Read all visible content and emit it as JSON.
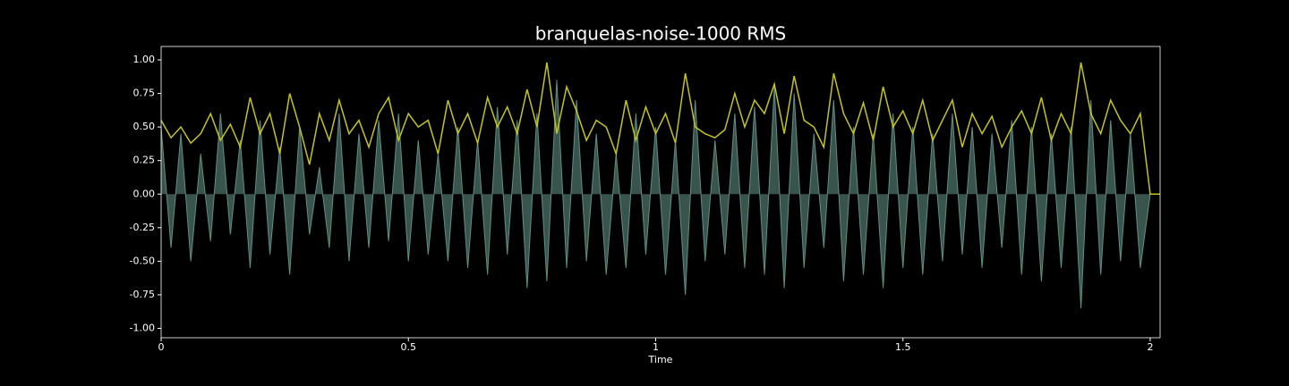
{
  "chart_data": {
    "type": "line",
    "title": "branquelas-noise-1000 RMS",
    "xlabel": "Time",
    "xlim": [
      0,
      2.02
    ],
    "xticks": [
      0,
      0.5,
      1,
      1.5,
      2
    ],
    "ylim": [
      -1.07,
      1.1
    ],
    "yticks": [
      {
        "value": -1,
        "label": "-1.00"
      },
      {
        "value": -0.75,
        "label": "-0.75"
      },
      {
        "value": -0.5,
        "label": "-0.50"
      },
      {
        "value": -0.25,
        "label": "-0.25"
      },
      {
        "value": 0,
        "label": "0.00"
      },
      {
        "value": 0.25,
        "label": "0.25"
      },
      {
        "value": 0.5,
        "label": "0.50"
      },
      {
        "value": 0.75,
        "label": "0.75"
      },
      {
        "value": 1,
        "label": "1.00"
      }
    ],
    "grid": false,
    "series": [
      {
        "color": "#5f8f86",
        "fill": "#38544d",
        "x": [
          0,
          0.02,
          0.04,
          0.06,
          0.08,
          0.1,
          0.12,
          0.14,
          0.16,
          0.18,
          0.2,
          0.22,
          0.24,
          0.26,
          0.28,
          0.3,
          0.32,
          0.34,
          0.36,
          0.38,
          0.4,
          0.42,
          0.44,
          0.46,
          0.48,
          0.5,
          0.52,
          0.54,
          0.56,
          0.58,
          0.6,
          0.62,
          0.64,
          0.66,
          0.68,
          0.7,
          0.72,
          0.74,
          0.76,
          0.78,
          0.8,
          0.82,
          0.84,
          0.86,
          0.88,
          0.9,
          0.92,
          0.94,
          0.96,
          0.98,
          1,
          1.02,
          1.04,
          1.06,
          1.08,
          1.1,
          1.12,
          1.14,
          1.16,
          1.18,
          1.2,
          1.22,
          1.24,
          1.26,
          1.28,
          1.3,
          1.32,
          1.34,
          1.36,
          1.38,
          1.4,
          1.42,
          1.44,
          1.46,
          1.48,
          1.5,
          1.52,
          1.54,
          1.56,
          1.58,
          1.6,
          1.62,
          1.64,
          1.66,
          1.68,
          1.7,
          1.72,
          1.74,
          1.76,
          1.78,
          1.8,
          1.82,
          1.84,
          1.86,
          1.88,
          1.9,
          1.92,
          1.94,
          1.96,
          1.98,
          2
        ],
        "values": [
          0.5,
          -0.4,
          0.45,
          -0.5,
          0.3,
          -0.35,
          0.6,
          -0.3,
          0.4,
          -0.55,
          0.55,
          -0.45,
          0.35,
          -0.6,
          0.5,
          -0.3,
          0.2,
          -0.4,
          0.6,
          -0.5,
          0.45,
          -0.4,
          0.55,
          -0.35,
          0.6,
          -0.5,
          0.4,
          -0.45,
          0.3,
          -0.5,
          0.5,
          -0.55,
          0.4,
          -0.6,
          0.65,
          -0.45,
          0.55,
          -0.7,
          0.6,
          -0.65,
          0.85,
          -0.55,
          0.7,
          -0.5,
          0.45,
          -0.6,
          0.3,
          -0.55,
          0.6,
          -0.45,
          0.5,
          -0.6,
          0.4,
          -0.75,
          0.7,
          -0.5,
          0.4,
          -0.45,
          0.6,
          -0.55,
          0.65,
          -0.6,
          0.8,
          -0.7,
          0.75,
          -0.55,
          0.45,
          -0.4,
          0.7,
          -0.65,
          0.5,
          -0.6,
          0.45,
          -0.7,
          0.6,
          -0.55,
          0.5,
          -0.6,
          0.45,
          -0.5,
          0.6,
          -0.45,
          0.5,
          -0.55,
          0.45,
          -0.4,
          0.55,
          -0.6,
          0.5,
          -0.65,
          0.45,
          -0.55,
          0.5,
          -0.85,
          0.7,
          -0.6,
          0.55,
          -0.5,
          0.45,
          -0.55,
          0
        ]
      },
      {
        "color": "#c4c41c",
        "x": [
          0,
          0.02,
          0.04,
          0.06,
          0.08,
          0.1,
          0.12,
          0.14,
          0.16,
          0.18,
          0.2,
          0.22,
          0.24,
          0.26,
          0.28,
          0.3,
          0.32,
          0.34,
          0.36,
          0.38,
          0.4,
          0.42,
          0.44,
          0.46,
          0.48,
          0.5,
          0.52,
          0.54,
          0.56,
          0.58,
          0.6,
          0.62,
          0.64,
          0.66,
          0.68,
          0.7,
          0.72,
          0.74,
          0.76,
          0.78,
          0.8,
          0.82,
          0.84,
          0.86,
          0.88,
          0.9,
          0.92,
          0.94,
          0.96,
          0.98,
          1,
          1.02,
          1.04,
          1.06,
          1.08,
          1.1,
          1.12,
          1.14,
          1.16,
          1.18,
          1.2,
          1.22,
          1.24,
          1.26,
          1.28,
          1.3,
          1.32,
          1.34,
          1.36,
          1.38,
          1.4,
          1.42,
          1.44,
          1.46,
          1.48,
          1.5,
          1.52,
          1.54,
          1.56,
          1.58,
          1.6,
          1.62,
          1.64,
          1.66,
          1.68,
          1.7,
          1.72,
          1.74,
          1.76,
          1.78,
          1.8,
          1.82,
          1.84,
          1.86,
          1.88,
          1.9,
          1.92,
          1.94,
          1.96,
          1.98,
          2,
          2.02
        ],
        "values": [
          0.55,
          0.42,
          0.5,
          0.38,
          0.45,
          0.6,
          0.4,
          0.52,
          0.35,
          0.72,
          0.45,
          0.6,
          0.3,
          0.75,
          0.5,
          0.22,
          0.6,
          0.4,
          0.7,
          0.45,
          0.55,
          0.35,
          0.6,
          0.72,
          0.4,
          0.6,
          0.5,
          0.55,
          0.3,
          0.7,
          0.45,
          0.6,
          0.38,
          0.72,
          0.5,
          0.65,
          0.45,
          0.78,
          0.5,
          0.98,
          0.45,
          0.8,
          0.62,
          0.4,
          0.55,
          0.5,
          0.3,
          0.7,
          0.4,
          0.65,
          0.45,
          0.6,
          0.38,
          0.9,
          0.5,
          0.45,
          0.42,
          0.48,
          0.75,
          0.5,
          0.7,
          0.6,
          0.82,
          0.45,
          0.88,
          0.55,
          0.5,
          0.35,
          0.9,
          0.6,
          0.45,
          0.68,
          0.4,
          0.8,
          0.5,
          0.62,
          0.45,
          0.7,
          0.4,
          0.55,
          0.7,
          0.35,
          0.6,
          0.45,
          0.58,
          0.35,
          0.5,
          0.62,
          0.45,
          0.72,
          0.4,
          0.6,
          0.45,
          0.98,
          0.6,
          0.45,
          0.7,
          0.55,
          0.45,
          0.6,
          0,
          0
        ]
      }
    ]
  }
}
